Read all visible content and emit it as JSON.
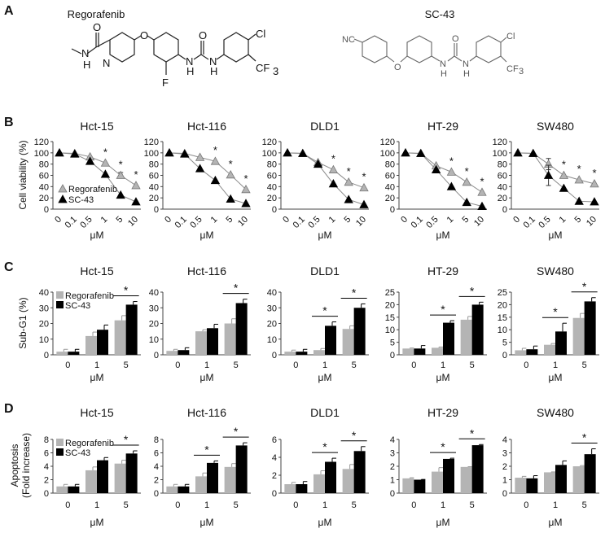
{
  "panels": {
    "a": "A",
    "b": "B",
    "c": "C",
    "d": "D"
  },
  "structures": {
    "regorafenib": {
      "name": "Regorafenib",
      "atoms": [
        "O",
        "N",
        "H",
        "N",
        "O",
        "F",
        "N",
        "H",
        "O",
        "N",
        "H",
        "Cl",
        "CF",
        "3"
      ]
    },
    "sc43": {
      "name": "SC-43",
      "atoms": [
        "NC",
        "O",
        "N",
        "H",
        "O",
        "N",
        "H",
        "Cl",
        "CF",
        "3"
      ]
    }
  },
  "colors": {
    "regorafenib": "#b4b4b4",
    "sc43": "#000000",
    "line": "#8a8a8a"
  },
  "legend": [
    "Regorafenib",
    "SC-43"
  ],
  "significance_marker": "*",
  "chart_data": [
    {
      "panel": "B",
      "type": "line",
      "ylabel": "Cell viability (%)",
      "xlabel": "μM",
      "categories": [
        "0",
        "0.1",
        "0.5",
        "1",
        "5",
        "10"
      ],
      "ylim": [
        0,
        120
      ],
      "ytick_step": 20,
      "legend_placement": "bottom-left of first plot",
      "charts": [
        {
          "title": "Hct-15",
          "series": [
            {
              "name": "Regorafenib",
              "values": [
                100,
                99,
                93,
                82,
                60,
                42
              ],
              "err": [
                0,
                0,
                0,
                0,
                5,
                0
              ]
            },
            {
              "name": "SC-43",
              "values": [
                100,
                98,
                85,
                62,
                25,
                13
              ],
              "err": [
                0,
                0,
                0,
                0,
                0,
                0
              ]
            }
          ],
          "significant": [
            3,
            4,
            5
          ]
        },
        {
          "title": "Hct-116",
          "series": [
            {
              "name": "Regorafenib",
              "values": [
                100,
                99,
                92,
                85,
                61,
                35
              ],
              "err": [
                0,
                0,
                0,
                0,
                0,
                0
              ]
            },
            {
              "name": "SC-43",
              "values": [
                100,
                98,
                72,
                51,
                18,
                10
              ],
              "err": [
                0,
                0,
                0,
                0,
                0,
                0
              ]
            }
          ],
          "significant": [
            3,
            4,
            5
          ]
        },
        {
          "title": "DLD1",
          "series": [
            {
              "name": "Regorafenib",
              "values": [
                100,
                99,
                83,
                70,
                48,
                38
              ],
              "err": [
                0,
                0,
                0,
                0,
                0,
                0
              ]
            },
            {
              "name": "SC-43",
              "values": [
                100,
                99,
                80,
                45,
                17,
                8
              ],
              "err": [
                0,
                0,
                0,
                0,
                0,
                0
              ]
            }
          ],
          "significant": [
            3,
            4,
            5
          ]
        },
        {
          "title": "HT-29",
          "series": [
            {
              "name": "Regorafenib",
              "values": [
                100,
                99,
                77,
                66,
                48,
                30
              ],
              "err": [
                0,
                0,
                0,
                0,
                0,
                0
              ]
            },
            {
              "name": "SC-43",
              "values": [
                100,
                99,
                70,
                40,
                12,
                5
              ],
              "err": [
                0,
                0,
                0,
                0,
                0,
                0
              ]
            }
          ],
          "significant": [
            3,
            4,
            5
          ]
        },
        {
          "title": "SW480",
          "series": [
            {
              "name": "Regorafenib",
              "values": [
                100,
                99,
                80,
                60,
                52,
                45
              ],
              "err": [
                0,
                0,
                10,
                0,
                0,
                0
              ]
            },
            {
              "name": "SC-43",
              "values": [
                100,
                99,
                60,
                37,
                14,
                13
              ],
              "err": [
                0,
                0,
                18,
                0,
                0,
                0
              ]
            }
          ],
          "significant": [
            3,
            4,
            5
          ]
        }
      ]
    },
    {
      "panel": "C",
      "type": "bar",
      "ylabel": "Sub-G1 (%)",
      "xlabel": "μM",
      "categories": [
        "0",
        "1",
        "5"
      ],
      "legend_placement": "top-left of first plot",
      "charts": [
        {
          "title": "Hct-15",
          "ylim": [
            0,
            40
          ],
          "ytick_step": 10,
          "series": [
            {
              "name": "Regorafenib",
              "values": [
                2,
                12,
                22
              ],
              "err": [
                1.5,
                2.5,
                3
              ]
            },
            {
              "name": "SC-43",
              "values": [
                2,
                16,
                32
              ],
              "err": [
                1.5,
                3,
                2
              ]
            }
          ],
          "significant": [
            2
          ]
        },
        {
          "title": "Hct-116",
          "ylim": [
            0,
            40
          ],
          "ytick_step": 10,
          "series": [
            {
              "name": "Regorafenib",
              "values": [
                2.5,
                15,
                20
              ],
              "err": [
                1,
                1,
                3
              ]
            },
            {
              "name": "SC-43",
              "values": [
                3,
                17,
                33
              ],
              "err": [
                1.5,
                2.5,
                2.5
              ]
            }
          ],
          "significant": [
            2
          ]
        },
        {
          "title": "DLD1",
          "ylim": [
            0,
            40
          ],
          "ytick_step": 10,
          "series": [
            {
              "name": "Regorafenib",
              "values": [
                2,
                3,
                16.5
              ],
              "err": [
                1,
                1,
                2
              ]
            },
            {
              "name": "SC-43",
              "values": [
                2,
                18.5,
                30
              ],
              "err": [
                1.5,
                2.5,
                2.5
              ]
            }
          ],
          "significant": [
            1,
            2
          ]
        },
        {
          "title": "HT-29",
          "ylim": [
            0,
            25
          ],
          "ytick_step": 5,
          "series": [
            {
              "name": "Regorafenib",
              "values": [
                2.5,
                2.8,
                14
              ],
              "err": [
                0.2,
                0.3,
                1.3
              ]
            },
            {
              "name": "SC-43",
              "values": [
                2.5,
                12.8,
                20
              ],
              "err": [
                1.2,
                0.8,
                1
              ]
            }
          ],
          "significant": [
            1,
            2
          ]
        },
        {
          "title": "SW480",
          "ylim": [
            0,
            25
          ],
          "ytick_step": 5,
          "series": [
            {
              "name": "Regorafenib",
              "values": [
                1.8,
                4,
                14.7
              ],
              "err": [
                0.8,
                0.5,
                1.8
              ]
            },
            {
              "name": "SC-43",
              "values": [
                2.2,
                9.3,
                21.3
              ],
              "err": [
                1.3,
                3.3,
                1.5
              ]
            }
          ],
          "significant": [
            1,
            2
          ]
        }
      ]
    },
    {
      "panel": "D",
      "type": "bar",
      "ylabel": [
        "Apoptosis",
        "(Fold increase)"
      ],
      "xlabel": "μM",
      "categories": [
        "0",
        "1",
        "5"
      ],
      "legend_placement": "top-left of first plot",
      "charts": [
        {
          "title": "Hct-15",
          "ylim": [
            0,
            8
          ],
          "ytick_step": 2,
          "series": [
            {
              "name": "Regorafenib",
              "values": [
                1,
                3.4,
                4.4
              ],
              "err": [
                0.3,
                0.5,
                0.5
              ]
            },
            {
              "name": "SC-43",
              "values": [
                1,
                4.9,
                5.9
              ],
              "err": [
                0.3,
                0.4,
                0.4
              ]
            }
          ],
          "significant": [
            2
          ]
        },
        {
          "title": "Hct-116",
          "ylim": [
            0,
            8
          ],
          "ytick_step": 2,
          "series": [
            {
              "name": "Regorafenib",
              "values": [
                1,
                2.5,
                3.9
              ],
              "err": [
                0.3,
                0.5,
                0.5
              ]
            },
            {
              "name": "SC-43",
              "values": [
                1,
                4.5,
                7.1
              ],
              "err": [
                0.3,
                0.3,
                0.4
              ]
            }
          ],
          "significant": [
            1,
            2
          ]
        },
        {
          "title": "DLD1",
          "ylim": [
            0,
            6
          ],
          "ytick_step": 2,
          "series": [
            {
              "name": "Regorafenib",
              "values": [
                1,
                2.1,
                2.7
              ],
              "err": [
                0.2,
                0.4,
                0.5
              ]
            },
            {
              "name": "SC-43",
              "values": [
                1,
                3.5,
                4.7
              ],
              "err": [
                0.3,
                0.4,
                0.5
              ]
            }
          ],
          "significant": [
            1,
            2
          ]
        },
        {
          "title": "HT-29",
          "ylim": [
            0,
            4
          ],
          "ytick_step": 1,
          "series": [
            {
              "name": "Regorafenib",
              "values": [
                1.1,
                1.6,
                1.95
              ],
              "err": [
                0.05,
                0.3,
                0.02
              ]
            },
            {
              "name": "SC-43",
              "values": [
                1,
                2.55,
                3.57
              ],
              "err": [
                0.02,
                0.05,
                0.05
              ]
            }
          ],
          "significant": [
            1,
            2
          ]
        },
        {
          "title": "SW480",
          "ylim": [
            0,
            4
          ],
          "ytick_step": 1,
          "series": [
            {
              "name": "Regorafenib",
              "values": [
                1.15,
                1.55,
                2
              ],
              "err": [
                0.1,
                0.03,
                0.05
              ]
            },
            {
              "name": "SC-43",
              "values": [
                1.1,
                2.1,
                2.9
              ],
              "err": [
                0.2,
                0.3,
                0.4
              ]
            }
          ],
          "significant": [
            2
          ]
        }
      ]
    }
  ]
}
